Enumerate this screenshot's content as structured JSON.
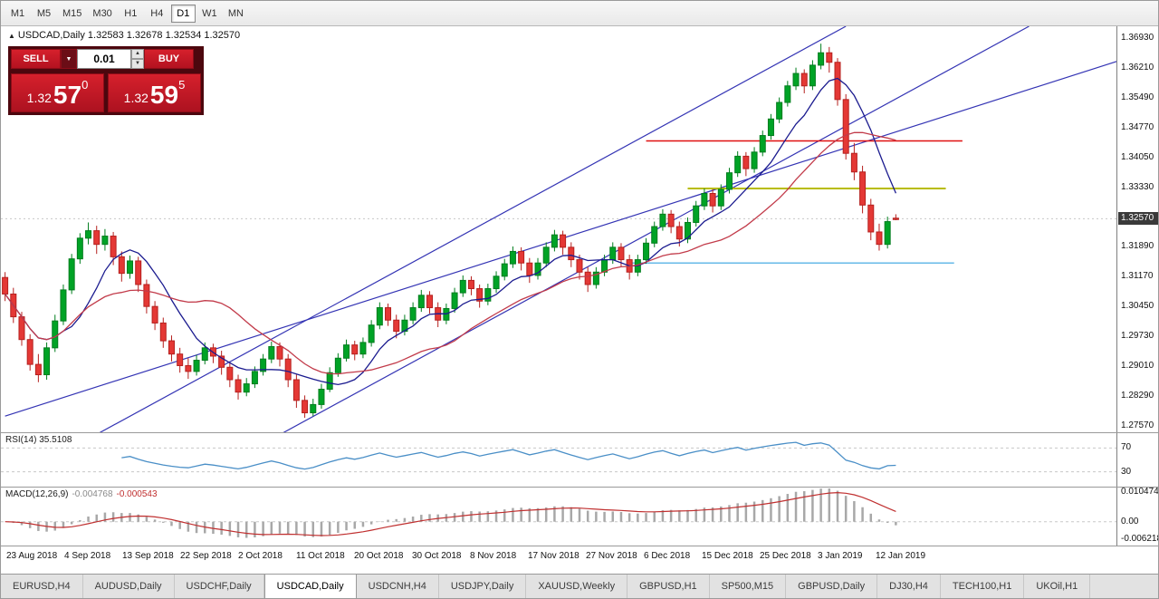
{
  "toolbar": {
    "timeframes": [
      "M1",
      "M5",
      "M15",
      "M30",
      "H1",
      "H4",
      "D1",
      "W1",
      "MN"
    ],
    "active_timeframe": "D1"
  },
  "chart": {
    "title_line": "USDCAD,Daily 1.32583 1.32678 1.32534 1.32570",
    "symbol": "USDCAD,Daily",
    "icons": {
      "symbol_arrow": "▲",
      "dropdown": "▼",
      "spin_up": "▲",
      "spin_down": "▼"
    },
    "trade_panel": {
      "sell_label": "SELL",
      "buy_label": "BUY",
      "volume": "0.01",
      "bid": {
        "prefix": "1.32",
        "big": "57",
        "sup": "0"
      },
      "ask": {
        "prefix": "1.32",
        "big": "59",
        "sup": "5"
      }
    }
  },
  "chart_data": {
    "type": "candlestick",
    "symbol": "USDCAD",
    "timeframe": "Daily",
    "ylim": [
      1.2741,
      1.3722
    ],
    "x_slots": 134,
    "current_price": 1.3257,
    "current_price_label": "1.32570",
    "price_axis_labels": [
      1.3693,
      1.3621,
      1.3549,
      1.3477,
      1.3405,
      1.3333,
      1.3261,
      1.3189,
      1.3117,
      1.3045,
      1.2973,
      1.2901,
      1.2829,
      1.2757
    ],
    "date_labels": [
      "23 Aug 2018",
      "4 Sep 2018",
      "13 Sep 2018",
      "22 Sep 2018",
      "2 Oct 2018",
      "11 Oct 2018",
      "20 Oct 2018",
      "30 Oct 2018",
      "8 Nov 2018",
      "17 Nov 2018",
      "27 Nov 2018",
      "6 Dec 2018",
      "15 Dec 2018",
      "25 Dec 2018",
      "3 Jan 2019",
      "12 Jan 2019"
    ],
    "colors": {
      "up": "#00a326",
      "up_stroke": "#007d1d",
      "down": "#e43835",
      "down_stroke": "#b5201e",
      "ma_fast": "#1b1b8f",
      "ma_slow": "#c23b4a",
      "trendline": "#3434b4",
      "bid_line": "#c8c8c8",
      "rsi_line": "#4a8fc7",
      "macd_hist": "#a8a8a8",
      "macd_signal": "#c03030",
      "level_dash": "#c8c8c8"
    },
    "moving_averages": [
      {
        "period": 8,
        "color": "#1b1b8f"
      },
      {
        "period": 20,
        "color": "#c23b4a"
      }
    ],
    "trendlines": [
      {
        "from": [
          0,
          1.278
        ],
        "to": [
          134,
          1.364
        ]
      },
      {
        "from": [
          14,
          1.2527
        ],
        "to": [
          123,
          1.3722
        ]
      },
      {
        "from": [
          10,
          1.2725
        ],
        "to": [
          101,
          1.3722
        ]
      }
    ],
    "hlines": [
      {
        "price": 1.3445,
        "x_from": 77,
        "x_to": 115,
        "color": "#e01010",
        "width": 1.5
      },
      {
        "price": 1.333,
        "x_from": 82,
        "x_to": 113,
        "color": "#b8bc00",
        "width": 2
      },
      {
        "price": 1.315,
        "x_from": 75,
        "x_to": 114,
        "color": "#66b9e8",
        "width": 1.5
      }
    ],
    "indicators": [
      {
        "name": "RSI",
        "label": "RSI(14) 35.5108",
        "period": 14,
        "levels": [
          70,
          30
        ],
        "value_range": [
          5,
          95
        ]
      },
      {
        "name": "MACD",
        "label": "MACD(12,26,9)",
        "value_main": "-0.004768",
        "value_signal": "-0.000543",
        "params": [
          12,
          26,
          9
        ],
        "axis_labels": [
          {
            "v": 0.010474,
            "t": "0.010474"
          },
          {
            "v": 0,
            "t": "0.00"
          },
          {
            "v": -0.006218,
            "t": "-0.006218"
          }
        ],
        "value_range": [
          -0.0085,
          0.0122
        ]
      }
    ],
    "ohlc": [
      [
        1.3115,
        1.3128,
        1.3058,
        1.3075
      ],
      [
        1.3075,
        1.309,
        1.3005,
        1.302
      ],
      [
        1.302,
        1.3032,
        1.295,
        1.2965
      ],
      [
        1.2965,
        1.2978,
        1.289,
        1.2905
      ],
      [
        1.2905,
        1.293,
        1.2862,
        1.288
      ],
      [
        1.288,
        1.2958,
        1.2868,
        1.2945
      ],
      [
        1.2945,
        1.3025,
        1.2935,
        1.301
      ],
      [
        1.301,
        1.3098,
        1.3,
        1.3085
      ],
      [
        1.3085,
        1.3172,
        1.3075,
        1.316
      ],
      [
        1.316,
        1.3222,
        1.3148,
        1.321
      ],
      [
        1.321,
        1.3248,
        1.3195,
        1.3228
      ],
      [
        1.3228,
        1.324,
        1.3172,
        1.3195
      ],
      [
        1.3195,
        1.3232,
        1.318,
        1.3215
      ],
      [
        1.3215,
        1.3225,
        1.3145,
        1.3165
      ],
      [
        1.3165,
        1.3178,
        1.3105,
        1.3125
      ],
      [
        1.3125,
        1.3168,
        1.3112,
        1.3155
      ],
      [
        1.3155,
        1.3165,
        1.308,
        1.3098
      ],
      [
        1.3098,
        1.311,
        1.3028,
        1.3045
      ],
      [
        1.3045,
        1.3058,
        1.2988,
        1.3005
      ],
      [
        1.3005,
        1.3018,
        1.2945,
        1.2962
      ],
      [
        1.2962,
        1.2975,
        1.2912,
        1.293
      ],
      [
        1.293,
        1.2945,
        1.2885,
        1.2902
      ],
      [
        1.2902,
        1.292,
        1.287,
        1.2888
      ],
      [
        1.2888,
        1.2928,
        1.2878,
        1.2915
      ],
      [
        1.2915,
        1.2958,
        1.2905,
        1.2945
      ],
      [
        1.2945,
        1.2955,
        1.2908,
        1.2925
      ],
      [
        1.2925,
        1.2938,
        1.288,
        1.2898
      ],
      [
        1.2898,
        1.291,
        1.285,
        1.2868
      ],
      [
        1.2868,
        1.288,
        1.282,
        1.2838
      ],
      [
        1.2838,
        1.2872,
        1.2828,
        1.2858
      ],
      [
        1.2858,
        1.29,
        1.2848,
        1.2888
      ],
      [
        1.2888,
        1.293,
        1.2878,
        1.2918
      ],
      [
        1.2918,
        1.296,
        1.2908,
        1.2948
      ],
      [
        1.2948,
        1.2958,
        1.29,
        1.2918
      ],
      [
        1.2918,
        1.293,
        1.285,
        1.2868
      ],
      [
        1.2868,
        1.288,
        1.28,
        1.2818
      ],
      [
        1.2818,
        1.283,
        1.2776,
        1.2788
      ],
      [
        1.2788,
        1.2822,
        1.278,
        1.2808
      ],
      [
        1.2808,
        1.2858,
        1.2798,
        1.2845
      ],
      [
        1.2845,
        1.2898,
        1.2838,
        1.2885
      ],
      [
        1.2885,
        1.2932,
        1.2875,
        1.292
      ],
      [
        1.292,
        1.2965,
        1.2912,
        1.2952
      ],
      [
        1.2952,
        1.2962,
        1.2915,
        1.293
      ],
      [
        1.293,
        1.297,
        1.292,
        1.2958
      ],
      [
        1.2958,
        1.3012,
        1.2948,
        1.3
      ],
      [
        1.3,
        1.3055,
        1.299,
        1.3042
      ],
      [
        1.3042,
        1.3052,
        1.2998,
        1.3012
      ],
      [
        1.3012,
        1.3025,
        1.2968,
        1.2985
      ],
      [
        1.2985,
        1.3025,
        1.2975,
        1.3012
      ],
      [
        1.3012,
        1.3055,
        1.3002,
        1.3042
      ],
      [
        1.3042,
        1.3085,
        1.3032,
        1.3072
      ],
      [
        1.3072,
        1.3082,
        1.3028,
        1.3042
      ],
      [
        1.3042,
        1.3055,
        1.2995,
        1.3012
      ],
      [
        1.3012,
        1.3052,
        1.3002,
        1.304
      ],
      [
        1.304,
        1.309,
        1.303,
        1.3078
      ],
      [
        1.3078,
        1.312,
        1.3068,
        1.3108
      ],
      [
        1.3108,
        1.3118,
        1.3072,
        1.3088
      ],
      [
        1.3088,
        1.3098,
        1.3042,
        1.3058
      ],
      [
        1.3058,
        1.31,
        1.3048,
        1.3088
      ],
      [
        1.3088,
        1.313,
        1.3078,
        1.3118
      ],
      [
        1.3118,
        1.316,
        1.3108,
        1.3148
      ],
      [
        1.3148,
        1.319,
        1.3138,
        1.3178
      ],
      [
        1.3178,
        1.3188,
        1.3132,
        1.315
      ],
      [
        1.315,
        1.3162,
        1.3102,
        1.312
      ],
      [
        1.312,
        1.3162,
        1.311,
        1.315
      ],
      [
        1.315,
        1.32,
        1.314,
        1.3188
      ],
      [
        1.3188,
        1.323,
        1.3178,
        1.3218
      ],
      [
        1.3218,
        1.3228,
        1.317,
        1.3188
      ],
      [
        1.3188,
        1.32,
        1.314,
        1.3158
      ],
      [
        1.3158,
        1.317,
        1.311,
        1.3128
      ],
      [
        1.3128,
        1.314,
        1.308,
        1.3098
      ],
      [
        1.3098,
        1.314,
        1.3088,
        1.3128
      ],
      [
        1.3128,
        1.317,
        1.3118,
        1.3158
      ],
      [
        1.3158,
        1.32,
        1.3148,
        1.3188
      ],
      [
        1.3188,
        1.3198,
        1.314,
        1.3158
      ],
      [
        1.3158,
        1.317,
        1.311,
        1.3128
      ],
      [
        1.3128,
        1.317,
        1.3118,
        1.3158
      ],
      [
        1.3158,
        1.321,
        1.3148,
        1.3198
      ],
      [
        1.3198,
        1.325,
        1.3188,
        1.3238
      ],
      [
        1.3238,
        1.328,
        1.3228,
        1.3268
      ],
      [
        1.3268,
        1.3278,
        1.3222,
        1.3238
      ],
      [
        1.3238,
        1.325,
        1.319,
        1.3208
      ],
      [
        1.3208,
        1.326,
        1.3198,
        1.3248
      ],
      [
        1.3248,
        1.33,
        1.3238,
        1.3288
      ],
      [
        1.3288,
        1.333,
        1.3278,
        1.3318
      ],
      [
        1.3318,
        1.3328,
        1.3272,
        1.3288
      ],
      [
        1.3288,
        1.334,
        1.3278,
        1.3328
      ],
      [
        1.3328,
        1.338,
        1.3318,
        1.3368
      ],
      [
        1.3368,
        1.342,
        1.3358,
        1.3408
      ],
      [
        1.3408,
        1.3418,
        1.336,
        1.3378
      ],
      [
        1.3378,
        1.343,
        1.3368,
        1.3418
      ],
      [
        1.3418,
        1.347,
        1.3408,
        1.3458
      ],
      [
        1.3458,
        1.351,
        1.3448,
        1.3498
      ],
      [
        1.3498,
        1.355,
        1.3488,
        1.3538
      ],
      [
        1.3538,
        1.359,
        1.3528,
        1.3578
      ],
      [
        1.3578,
        1.3622,
        1.3568,
        1.3608
      ],
      [
        1.3608,
        1.3618,
        1.356,
        1.3578
      ],
      [
        1.3578,
        1.364,
        1.3568,
        1.3628
      ],
      [
        1.3628,
        1.368,
        1.3618,
        1.3658
      ],
      [
        1.3658,
        1.3672,
        1.361,
        1.3635
      ],
      [
        1.3635,
        1.3645,
        1.353,
        1.3545
      ],
      [
        1.3545,
        1.3558,
        1.34,
        1.3415
      ],
      [
        1.3415,
        1.344,
        1.335,
        1.337
      ],
      [
        1.337,
        1.3385,
        1.327,
        1.329
      ],
      [
        1.329,
        1.3305,
        1.3205,
        1.3225
      ],
      [
        1.3225,
        1.3245,
        1.318,
        1.3195
      ],
      [
        1.3195,
        1.3262,
        1.3185,
        1.325
      ],
      [
        1.32583,
        1.32678,
        1.32534,
        1.3257
      ]
    ]
  },
  "bottom_tabs": {
    "items": [
      "EURUSD,H4",
      "AUDUSD,Daily",
      "USDCHF,Daily",
      "USDCAD,Daily",
      "USDCNH,H4",
      "USDJPY,Daily",
      "XAUUSD,Weekly",
      "GBPUSD,H1",
      "SP500,M15",
      "GBPUSD,Daily",
      "DJ30,H4",
      "TECH100,H1",
      "UKOil,H1"
    ],
    "active": "USDCAD,Daily"
  }
}
